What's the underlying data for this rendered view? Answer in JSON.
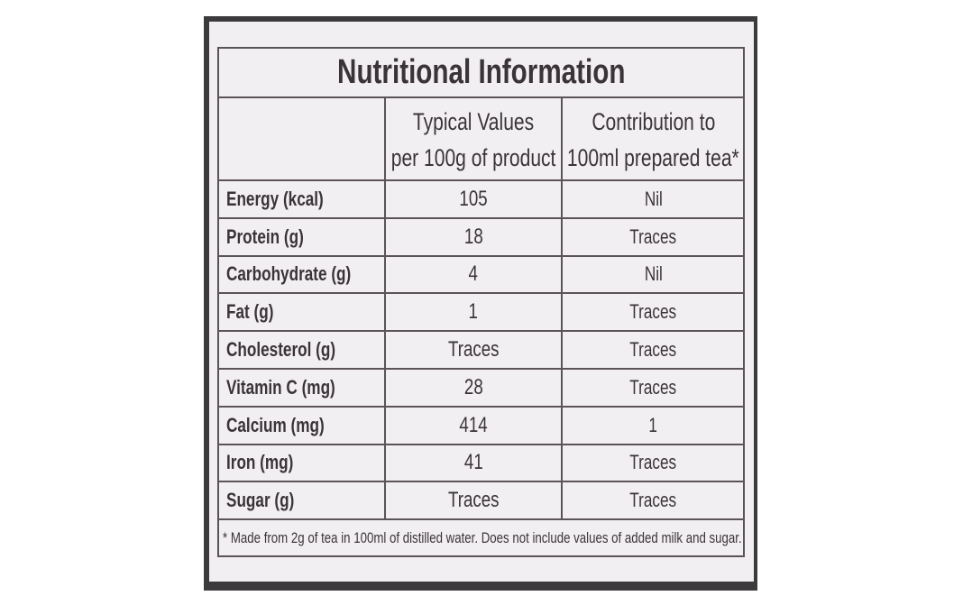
{
  "label": {
    "title": "Nutritional Information",
    "header": {
      "typical_values": [
        "Typical Values",
        "per 100g of product"
      ],
      "contribution": [
        "Contribution to",
        "100ml prepared tea*"
      ]
    },
    "rows": [
      [
        "Energy (kcal)",
        105,
        "Nil"
      ],
      [
        "Protein (g)",
        18,
        "Traces"
      ],
      [
        "Carbohydrate (g)",
        4,
        "Nil"
      ],
      [
        "Fat (g)",
        1,
        "Traces"
      ],
      [
        "Cholesterol (g)",
        "Traces",
        "Traces"
      ],
      [
        "Vitamin C (mg)",
        28,
        "Traces"
      ],
      [
        "Calcium (mg)",
        414,
        1
      ],
      [
        "Iron (mg)",
        41,
        "Traces"
      ],
      [
        "Sugar (g)",
        "Traces",
        "Traces"
      ]
    ],
    "footnote": "* Made from 2g of tea in 100ml of distilled water. Does not include values of added milk and sugar."
  }
}
